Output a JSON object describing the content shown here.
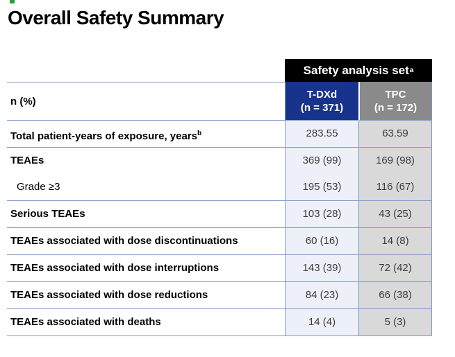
{
  "page": {
    "title": "Overall Safety Summary",
    "accent_green": "#21A038"
  },
  "table": {
    "span_header": "Safety analysis set",
    "span_header_sup": "a",
    "stub_header": "n (%)",
    "columns": [
      {
        "name": "T-DXd",
        "n": "(n = 371)"
      },
      {
        "name": "TPC",
        "n": "(n = 172)"
      }
    ],
    "colors": {
      "span_header_bg": "#000000",
      "tdxd_header_bg": "#17338C",
      "tpc_header_bg": "#8A8A8A",
      "tdxd_cell_bg": "#EDF0F8",
      "tpc_cell_bg": "#D9D9D9",
      "border": "#7E98C2"
    },
    "rows": [
      {
        "lines": [
          {
            "label": "Total patient-years of exposure, years",
            "sup": "b",
            "bold": true,
            "indent": false,
            "tdxd": "283.55",
            "tpc": "63.59"
          }
        ]
      },
      {
        "lines": [
          {
            "label": "TEAEs",
            "sup": "",
            "bold": true,
            "indent": false,
            "tdxd": "369 (99)",
            "tpc": "169 (98)"
          },
          {
            "label": "Grade ≥3",
            "sup": "",
            "bold": false,
            "indent": true,
            "tdxd": "195 (53)",
            "tpc": "116 (67)"
          }
        ]
      },
      {
        "lines": [
          {
            "label": "Serious TEAEs",
            "sup": "",
            "bold": true,
            "indent": false,
            "tdxd": "103 (28)",
            "tpc": "43 (25)"
          }
        ]
      },
      {
        "lines": [
          {
            "label": "TEAEs associated with dose discontinuations",
            "sup": "",
            "bold": true,
            "indent": false,
            "tdxd": "60 (16)",
            "tpc": "14 (8)"
          }
        ]
      },
      {
        "lines": [
          {
            "label": "TEAEs associated with dose interruptions",
            "sup": "",
            "bold": true,
            "indent": false,
            "tdxd": "143 (39)",
            "tpc": "72 (42)"
          }
        ]
      },
      {
        "lines": [
          {
            "label": "TEAEs associated with dose reductions",
            "sup": "",
            "bold": true,
            "indent": false,
            "tdxd": "84 (23)",
            "tpc": "66 (38)"
          }
        ]
      },
      {
        "lines": [
          {
            "label": "TEAEs associated with deaths",
            "sup": "",
            "bold": true,
            "indent": false,
            "tdxd": "14 (4)",
            "tpc": "5 (3)"
          }
        ]
      }
    ]
  }
}
